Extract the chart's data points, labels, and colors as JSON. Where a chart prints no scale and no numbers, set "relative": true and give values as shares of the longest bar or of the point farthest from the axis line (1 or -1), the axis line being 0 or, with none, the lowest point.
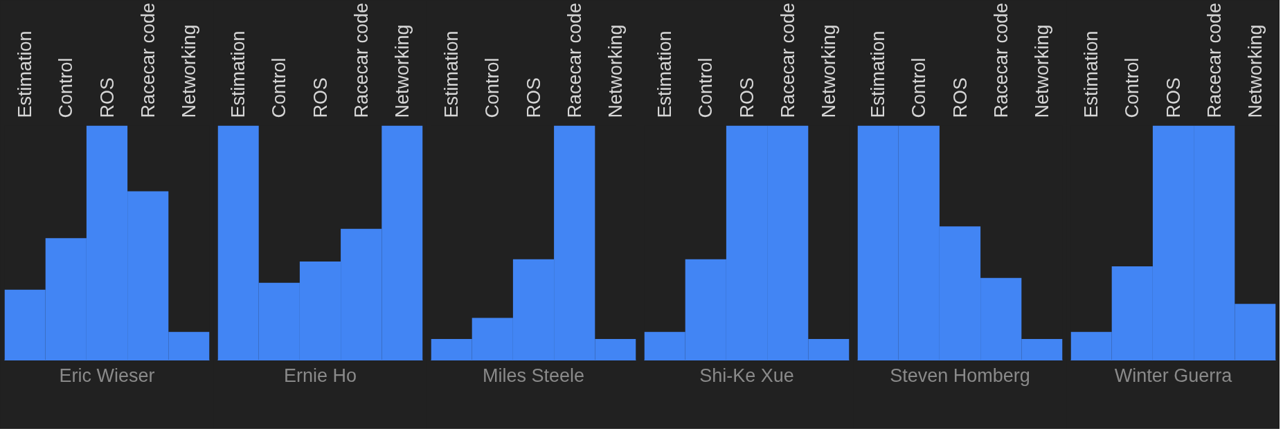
{
  "chart_data": [
    {
      "type": "bar",
      "relative": true,
      "xlabel": "Eric Wieser",
      "categories": [
        "Estimation",
        "Control",
        "ROS",
        "Racecar code",
        "Networking"
      ],
      "color": "#4285f4",
      "values": [
        0.3,
        0.52,
        1,
        0.72,
        0.12
      ]
    },
    {
      "type": "bar",
      "relative": true,
      "xlabel": "Ernie Ho",
      "categories": [
        "Estimation",
        "Control",
        "ROS",
        "Racecar code",
        "Networking"
      ],
      "color": "#4285f4",
      "values": [
        1,
        0.33,
        0.42,
        0.56,
        1
      ]
    },
    {
      "type": "bar",
      "relative": true,
      "xlabel": "Miles Steele",
      "categories": [
        "Estimation",
        "Control",
        "ROS",
        "Racecar code",
        "Networking"
      ],
      "color": "#4285f4",
      "values": [
        0.09,
        0.18,
        0.43,
        1,
        0.09
      ]
    },
    {
      "type": "bar",
      "relative": true,
      "xlabel": "Shi-Ke Xue",
      "categories": [
        "Estimation",
        "Control",
        "ROS",
        "Racecar code",
        "Networking"
      ],
      "color": "#4285f4",
      "values": [
        0.12,
        0.43,
        1,
        1,
        0.09
      ]
    },
    {
      "type": "bar",
      "relative": true,
      "xlabel": "Steven Homberg",
      "categories": [
        "Estimation",
        "Control",
        "ROS",
        "Racecar code",
        "Networking"
      ],
      "color": "#4285f4",
      "values": [
        1,
        1,
        0.57,
        0.35,
        0.09
      ]
    },
    {
      "type": "bar",
      "relative": true,
      "xlabel": "Winter Guerra",
      "categories": [
        "Estimation",
        "Control",
        "ROS",
        "Racecar code",
        "Networking"
      ],
      "color": "#4285f4",
      "values": [
        0.12,
        0.4,
        1,
        1,
        0.24
      ]
    }
  ]
}
